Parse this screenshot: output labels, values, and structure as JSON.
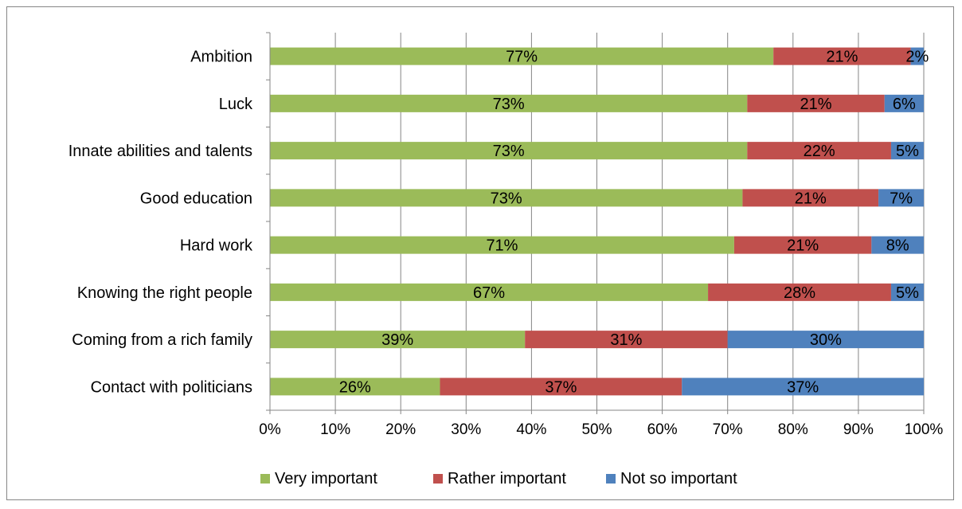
{
  "chart_data": {
    "type": "bar",
    "orientation": "horizontal",
    "stacked": true,
    "percent_stacked": true,
    "categories": [
      "Ambition",
      "Luck",
      "Innate abilities and talents",
      "Good education",
      "Hard work",
      "Knowing the right people",
      "Coming from a rich family",
      "Contact with politicians"
    ],
    "series": [
      {
        "name": "Very important",
        "color": "#9BBB59",
        "values": [
          77,
          73,
          73,
          73,
          71,
          67,
          39,
          26
        ],
        "labels": [
          "77%",
          "73%",
          "73%",
          "73%",
          "71%",
          "67%",
          "39%",
          "26%"
        ]
      },
      {
        "name": "Rather important",
        "color": "#C0504D",
        "values": [
          21,
          21,
          22,
          21,
          21,
          28,
          31,
          37
        ],
        "labels": [
          "21%",
          "21%",
          "22%",
          "21%",
          "21%",
          "28%",
          "31%",
          "37%"
        ]
      },
      {
        "name": "Not so important",
        "color": "#4F81BD",
        "values": [
          2,
          6,
          5,
          7,
          8,
          5,
          30,
          37
        ],
        "labels": [
          "2%",
          "6%",
          "5%",
          "7%",
          "8%",
          "5%",
          "30%",
          "37%"
        ]
      }
    ],
    "xlim": [
      0,
      100
    ],
    "x_ticks": [
      "0%",
      "10%",
      "20%",
      "30%",
      "40%",
      "50%",
      "60%",
      "70%",
      "80%",
      "90%",
      "100%"
    ],
    "grid": true,
    "legend_position": "bottom",
    "title": "",
    "xlabel": "",
    "ylabel": ""
  }
}
